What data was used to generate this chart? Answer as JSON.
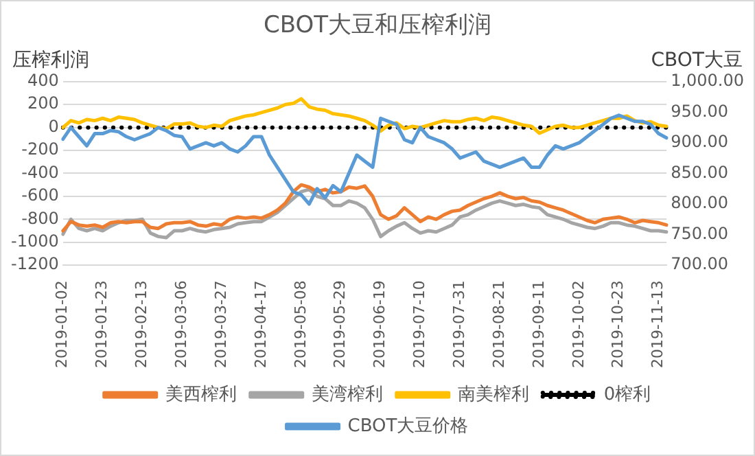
{
  "chart_data": {
    "type": "line",
    "title": "CBOT大豆和压榨利润",
    "ylabel": "压榨利润",
    "y2label": "CBOT大豆",
    "categories": [
      "2019-01-02",
      null,
      null,
      null,
      null,
      "2019-01-23",
      null,
      null,
      null,
      null,
      "2019-02-13",
      null,
      null,
      null,
      null,
      "2019-03-06",
      null,
      null,
      null,
      null,
      "2019-03-27",
      null,
      null,
      null,
      null,
      "2019-04-17",
      null,
      null,
      null,
      null,
      "2019-05-08",
      null,
      null,
      null,
      null,
      "2019-05-29",
      null,
      null,
      null,
      null,
      "2019-06-19",
      null,
      null,
      null,
      null,
      "2019-07-10",
      null,
      null,
      null,
      null,
      "2019-07-31",
      null,
      null,
      null,
      null,
      "2019-08-21",
      null,
      null,
      null,
      null,
      "2019-09-11",
      null,
      null,
      null,
      null,
      "2019-10-02",
      null,
      null,
      null,
      null,
      "2019-10-23",
      null,
      null,
      null,
      null,
      "2019-11-13",
      null
    ],
    "series": [
      {
        "name": "美西榨利",
        "type": "line",
        "color": "#ed7d31",
        "values": [
          -900,
          -820,
          -850,
          -860,
          -850,
          -870,
          -830,
          -820,
          -830,
          -820,
          -820,
          -870,
          -880,
          -840,
          -830,
          -830,
          -820,
          -850,
          -860,
          -840,
          -850,
          -800,
          -780,
          -790,
          -780,
          -790,
          -760,
          -720,
          -660,
          -560,
          -500,
          -520,
          -560,
          -540,
          -570,
          -560,
          -520,
          -530,
          -510,
          -600,
          -760,
          -800,
          -770,
          -700,
          -760,
          -820,
          -780,
          -800,
          -760,
          -730,
          -720,
          -680,
          -650,
          -620,
          -600,
          -570,
          -600,
          -620,
          -610,
          -640,
          -650,
          -680,
          -700,
          -720,
          -750,
          -780,
          -810,
          -830,
          -800,
          -790,
          -780,
          -800,
          -830,
          -810,
          -820,
          -830,
          -850
        ]
      },
      {
        "name": "美湾榨利",
        "type": "line",
        "color": "#a5a5a5",
        "values": [
          -930,
          -800,
          -880,
          -900,
          -880,
          -900,
          -860,
          -830,
          -810,
          -810,
          -800,
          -920,
          -950,
          -960,
          -900,
          -900,
          -880,
          -900,
          -910,
          -890,
          -880,
          -870,
          -840,
          -830,
          -820,
          -820,
          -780,
          -740,
          -680,
          -620,
          -560,
          -540,
          -600,
          -620,
          -680,
          -680,
          -640,
          -660,
          -700,
          -800,
          -950,
          -900,
          -860,
          -830,
          -880,
          -920,
          -900,
          -910,
          -880,
          -850,
          -780,
          -760,
          -720,
          -690,
          -660,
          -640,
          -660,
          -680,
          -670,
          -690,
          -700,
          -760,
          -780,
          -800,
          -830,
          -850,
          -870,
          -880,
          -860,
          -830,
          -830,
          -850,
          -860,
          -880,
          -900,
          -900,
          -910
        ]
      },
      {
        "name": "南美榨利",
        "type": "line",
        "color": "#ffc000",
        "values": [
          0,
          60,
          40,
          70,
          60,
          80,
          60,
          90,
          80,
          70,
          40,
          20,
          0,
          -10,
          30,
          30,
          40,
          10,
          0,
          20,
          10,
          60,
          80,
          100,
          110,
          130,
          150,
          170,
          200,
          210,
          250,
          180,
          160,
          150,
          120,
          110,
          100,
          80,
          60,
          20,
          -30,
          20,
          40,
          -10,
          10,
          0,
          20,
          40,
          60,
          50,
          50,
          70,
          80,
          60,
          90,
          80,
          60,
          40,
          20,
          10,
          -50,
          -20,
          10,
          20,
          0,
          0,
          20,
          40,
          60,
          80,
          80,
          100,
          60,
          40,
          50,
          20,
          10
        ]
      },
      {
        "name": "0榨利",
        "type": "line",
        "color": "#000000",
        "line_style": "dotted",
        "values": [
          0,
          0,
          0,
          0,
          0,
          0,
          0,
          0,
          0,
          0,
          0,
          0,
          0,
          0,
          0,
          0,
          0,
          0,
          0,
          0,
          0,
          0,
          0,
          0,
          0,
          0,
          0,
          0,
          0,
          0,
          0,
          0,
          0,
          0,
          0,
          0,
          0,
          0,
          0,
          0,
          0,
          0,
          0,
          0,
          0,
          0,
          0,
          0,
          0,
          0,
          0,
          0,
          0,
          0,
          0,
          0,
          0,
          0,
          0,
          0,
          0,
          0,
          0,
          0,
          0,
          0,
          0,
          0,
          0,
          0,
          0,
          0,
          0,
          0,
          0,
          0,
          0
        ]
      },
      {
        "name": "CBOT大豆价格",
        "type": "line",
        "color": "#5b9bd5",
        "axis": "y2",
        "values": [
          906,
          925,
          910,
          895,
          915,
          915,
          920,
          918,
          910,
          905,
          910,
          915,
          925,
          920,
          912,
          910,
          890,
          895,
          900,
          895,
          900,
          890,
          885,
          895,
          910,
          910,
          880,
          860,
          840,
          820,
          815,
          800,
          825,
          810,
          830,
          820,
          850,
          880,
          870,
          860,
          940,
          935,
          930,
          905,
          900,
          925,
          910,
          905,
          900,
          890,
          875,
          880,
          885,
          870,
          865,
          860,
          865,
          870,
          875,
          860,
          860,
          880,
          895,
          890,
          895,
          900,
          910,
          920,
          930,
          940,
          945,
          940,
          935,
          935,
          930,
          915,
          908
        ]
      }
    ],
    "ylim": [
      -1200,
      400
    ],
    "yticks": [
      -1200,
      -1000,
      -800,
      -600,
      -400,
      -200,
      0,
      200,
      400
    ],
    "y2lim": [
      700,
      1000
    ],
    "y2ticks": [
      {
        "value": 700,
        "label": "700.00"
      },
      {
        "value": 750,
        "label": "750.00"
      },
      {
        "value": 800,
        "label": "800.00"
      },
      {
        "value": 850,
        "label": "850.00"
      },
      {
        "value": 900,
        "label": "900.00"
      },
      {
        "value": 950,
        "label": "950.00"
      },
      {
        "value": 1000,
        "label": "1,000.00"
      }
    ],
    "grid": "y",
    "legend": "bottom",
    "marker": "none"
  }
}
